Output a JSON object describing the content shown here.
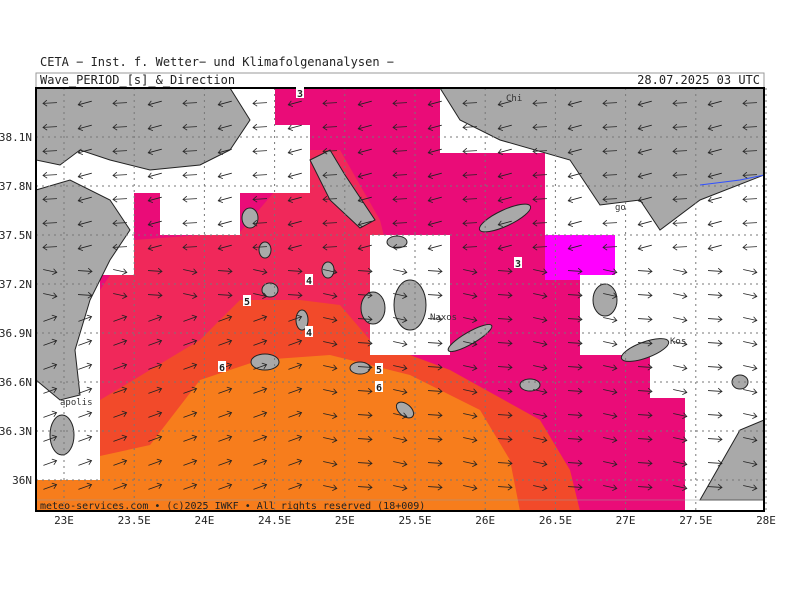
{
  "header": {
    "source": "CETA − Inst. f. Wetter− und Klimafolgenanalysen −",
    "title": "Wave_PERIOD_[s]_&_Direction",
    "valid_time": "28.07.2025 03 UTC"
  },
  "footer": "meteo-services.com • (c)2025 IWKF • All rights reserved (18+009)",
  "lat_labels": [
    {
      "value": 38.1,
      "label": "38.1N"
    },
    {
      "value": 37.8,
      "label": "37.8N"
    },
    {
      "value": 37.5,
      "label": "37.5N"
    },
    {
      "value": 37.2,
      "label": "37.2N"
    },
    {
      "value": 36.9,
      "label": "36.9N"
    },
    {
      "value": 36.6,
      "label": "36.6N"
    },
    {
      "value": 36.3,
      "label": "36.3N"
    },
    {
      "value": 36,
      "label": "36N"
    }
  ],
  "lon_labels": [
    {
      "value": 23,
      "label": "23E"
    },
    {
      "value": 23.5,
      "label": "23.5E"
    },
    {
      "value": 24,
      "label": "24E"
    },
    {
      "value": 24.5,
      "label": "24.5E"
    },
    {
      "value": 25,
      "label": "25E"
    },
    {
      "value": 25.5,
      "label": "25.5E"
    },
    {
      "value": 26,
      "label": "26E"
    },
    {
      "value": 26.5,
      "label": "26.5E"
    },
    {
      "value": 27,
      "label": "27E"
    },
    {
      "value": 27.5,
      "label": "27.5E"
    },
    {
      "value": 28,
      "label": "28E"
    }
  ],
  "contour_labels": [
    3,
    3,
    4,
    5,
    4,
    6,
    5,
    6
  ],
  "places": [
    "Chi",
    "Naxos",
    "Kos",
    "apolis",
    "go"
  ]
}
